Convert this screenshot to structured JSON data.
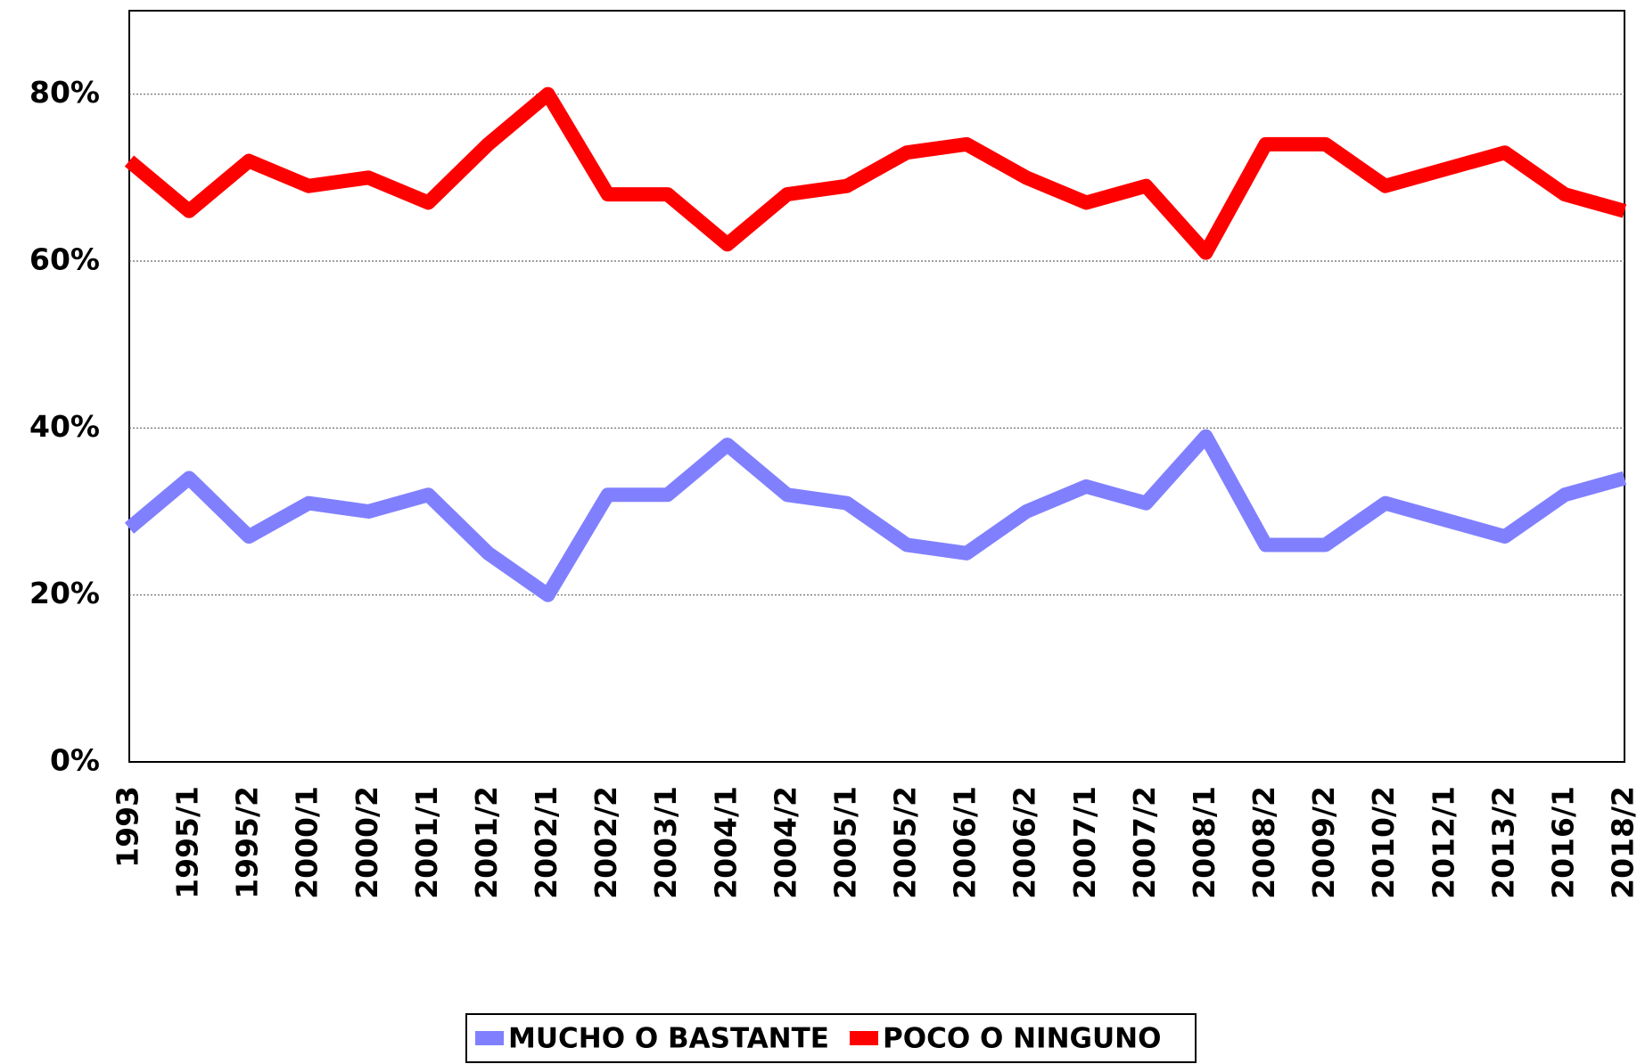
{
  "chart_data": {
    "type": "line",
    "categories": [
      "1993",
      "1995/1",
      "1995/2",
      "2000/1",
      "2000/2",
      "2001/1",
      "2001/2",
      "2002/1",
      "2002/2",
      "2003/1",
      "2004/1",
      "2004/2",
      "2005/1",
      "2005/2",
      "2006/1",
      "2006/2",
      "2007/1",
      "2007/2",
      "2008/1",
      "2008/2",
      "2009/2",
      "2010/2",
      "2012/1",
      "2013/2",
      "2016/1",
      "2018/2"
    ],
    "series": [
      {
        "name": "MUCHO O BASTANTE",
        "color": "#8080ff",
        "values": [
          28,
          34,
          27,
          31,
          30,
          32,
          25,
          20,
          32,
          32,
          38,
          32,
          31,
          26,
          25,
          30,
          33,
          31,
          39,
          26,
          26,
          31,
          29,
          27,
          32,
          34
        ]
      },
      {
        "name": "POCO O NINGUNO",
        "color": "#ff0000",
        "values": [
          72,
          66,
          72,
          69,
          70,
          67,
          74,
          80,
          68,
          68,
          62,
          68,
          69,
          73,
          74,
          70,
          67,
          69,
          61,
          74,
          74,
          69,
          71,
          73,
          68,
          66
        ]
      }
    ],
    "ylim": [
      0,
      90
    ],
    "yticks": [
      {
        "value": 0,
        "label": "0%"
      },
      {
        "value": 20,
        "label": "20%"
      },
      {
        "value": 40,
        "label": "40%"
      },
      {
        "value": 60,
        "label": "60%"
      },
      {
        "value": 80,
        "label": "80%"
      }
    ],
    "grid": true,
    "legend": "bottom"
  }
}
